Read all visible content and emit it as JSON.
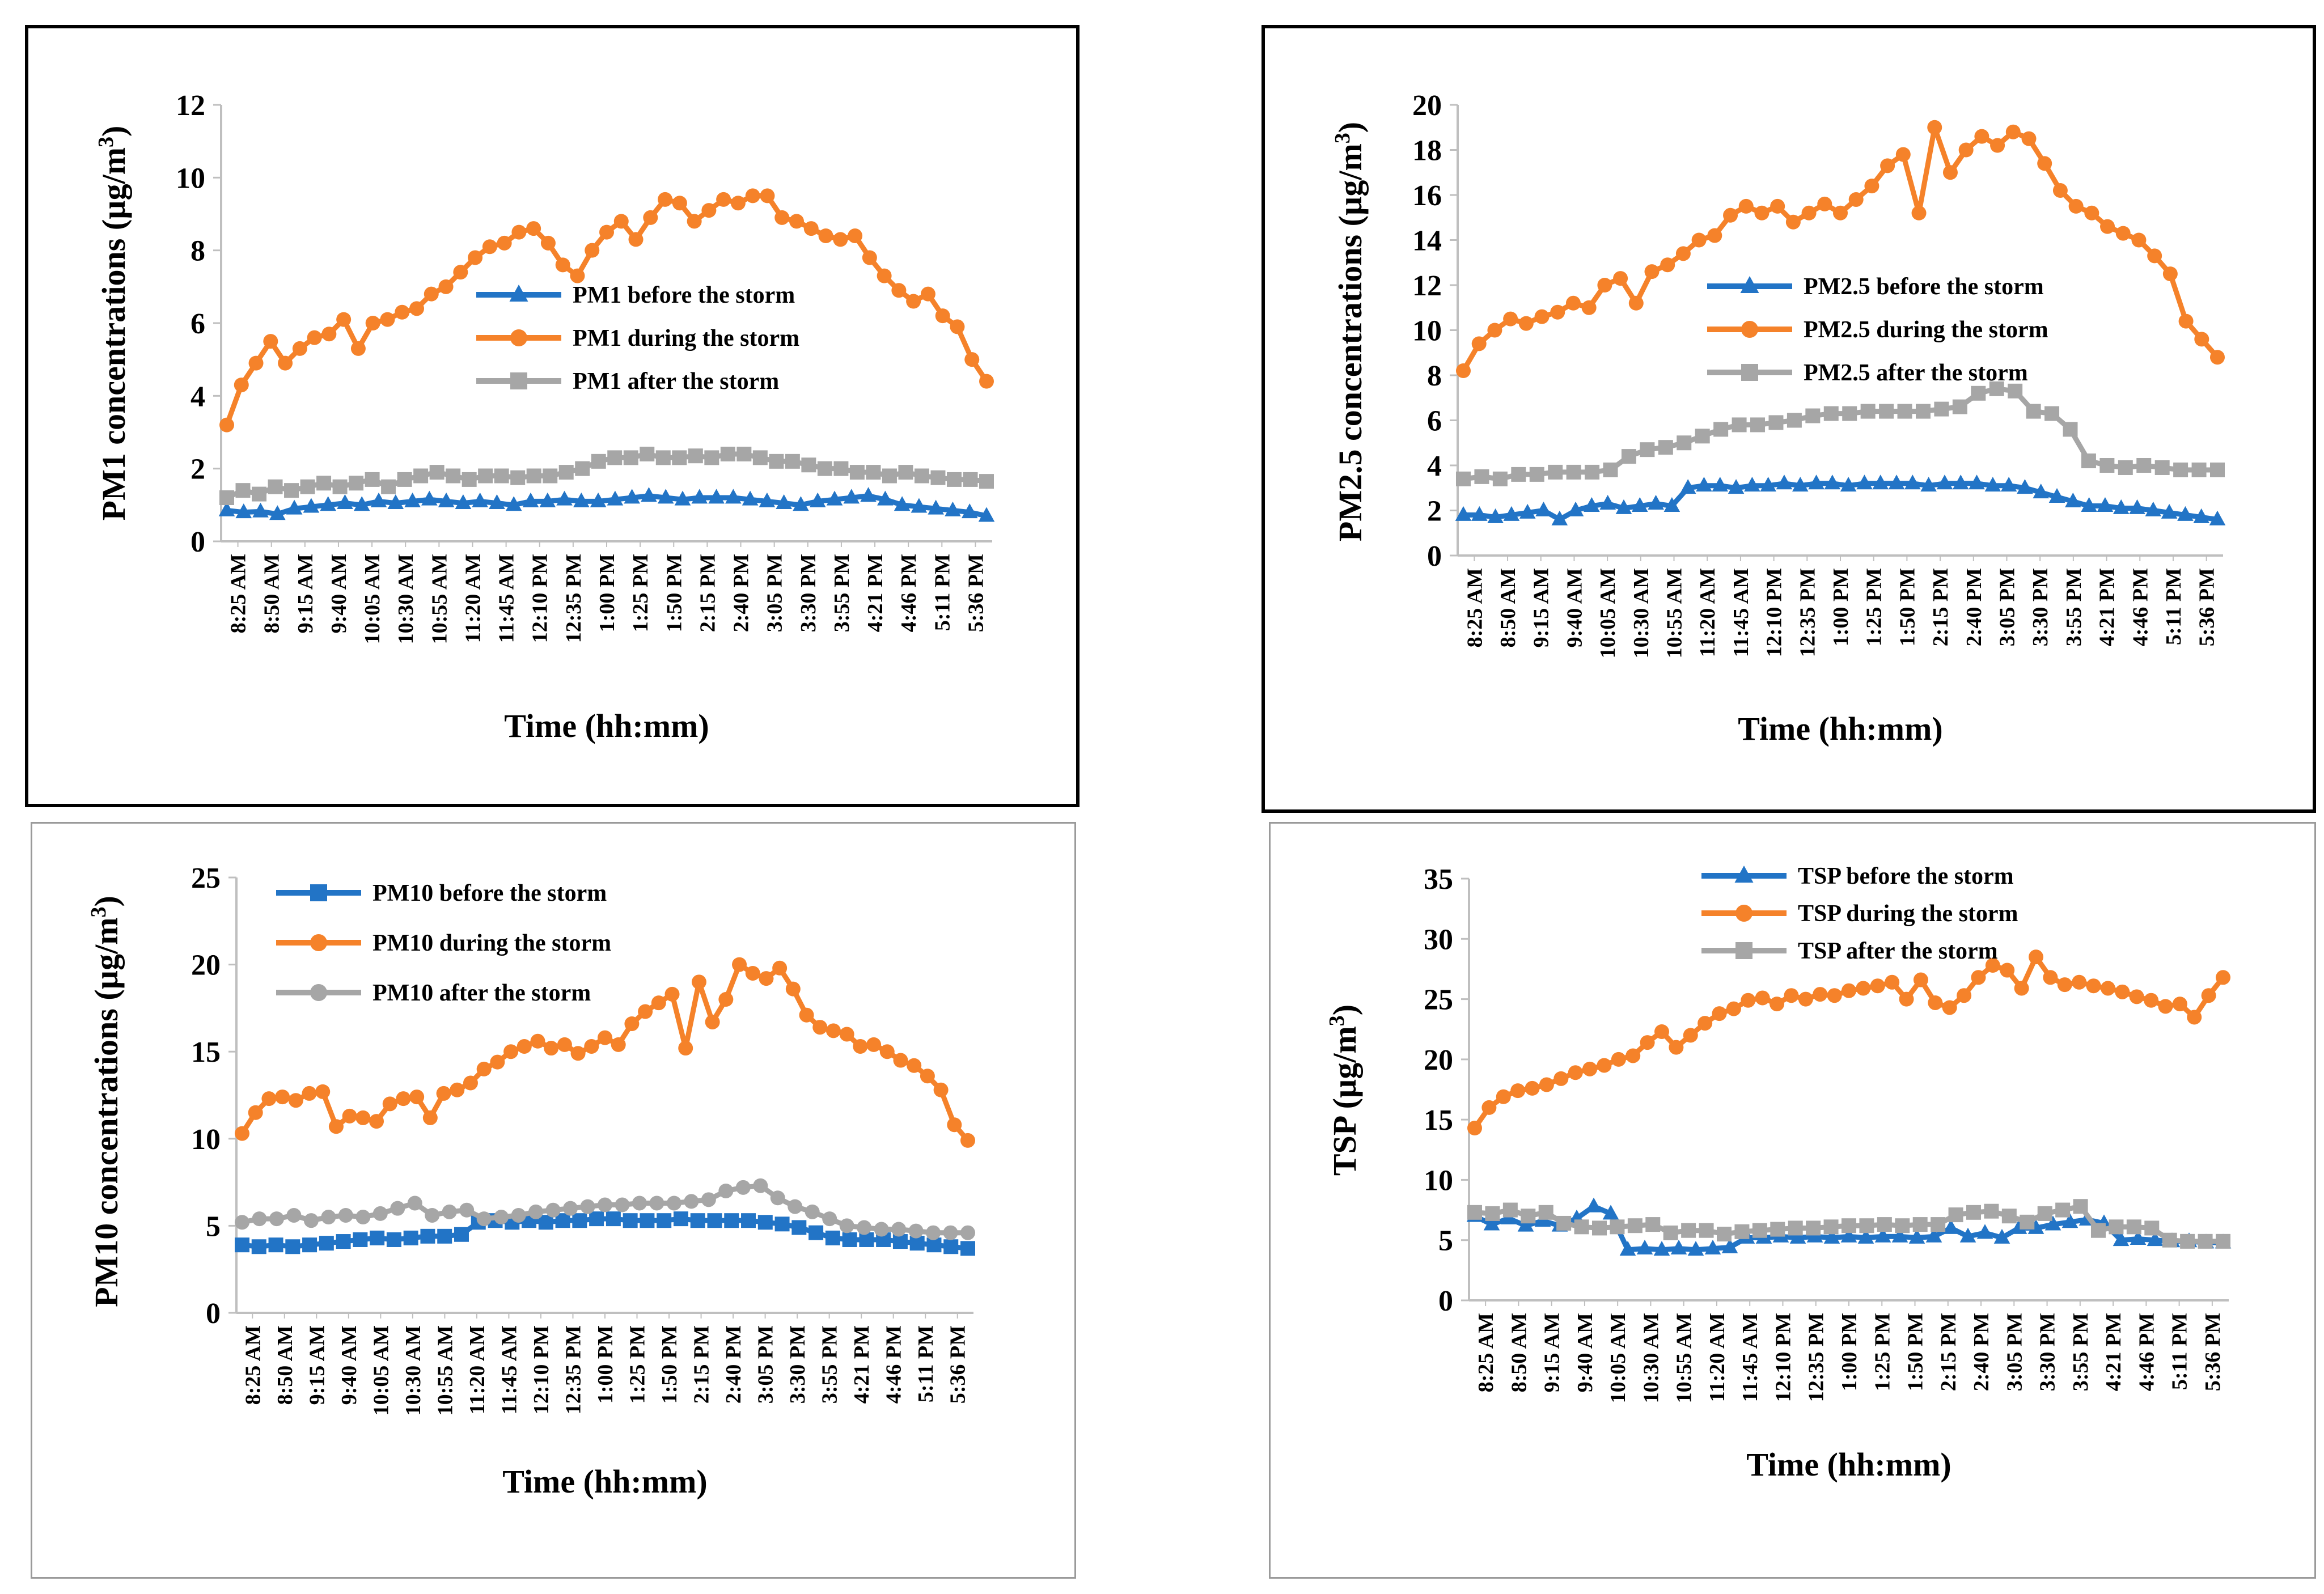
{
  "colors": {
    "before": "#2274C6",
    "during": "#F5822A",
    "after": "#A6A6A6"
  },
  "x_tick_labels": [
    "8:25 AM",
    "8:50 AM",
    "9:15 AM",
    "9:40 AM",
    "10:05 AM",
    "10:30 AM",
    "10:55 AM",
    "11:20 AM",
    "11:45 AM",
    "12:10 PM",
    "12:35 PM",
    "1:00 PM",
    "1:25 PM",
    "1:50 PM",
    "2:15 PM",
    "2:40 PM",
    "3:05 PM",
    "3:30 PM",
    "3:55 PM",
    "4:21 PM",
    "4:46 PM",
    "5:11 PM",
    "5:36 PM"
  ],
  "chart_data": [
    {
      "id": "pm1",
      "type": "line",
      "xlabel": "Time (hh:mm)",
      "ylabel_main": "PM1 concentrations (µg/m",
      "ylabel_sup": "3",
      "ylabel_end": ")",
      "ylim": [
        0,
        12
      ],
      "yticks": [
        0,
        2,
        4,
        6,
        8,
        10,
        12
      ],
      "legend_position": "center",
      "series": [
        {
          "name": "PM1 before the storm",
          "key": "before",
          "marker": "triangle",
          "values": [
            0.85,
            0.8,
            0.82,
            0.75,
            0.9,
            0.95,
            1.0,
            1.05,
            1.0,
            1.1,
            1.05,
            1.1,
            1.15,
            1.1,
            1.05,
            1.1,
            1.05,
            1.0,
            1.1,
            1.1,
            1.15,
            1.1,
            1.1,
            1.15,
            1.2,
            1.25,
            1.2,
            1.15,
            1.2,
            1.2,
            1.2,
            1.15,
            1.1,
            1.05,
            1.0,
            1.1,
            1.15,
            1.2,
            1.25,
            1.15,
            1.0,
            0.95,
            0.9,
            0.85,
            0.8,
            0.7
          ]
        },
        {
          "name": "PM1 during the storm",
          "key": "during",
          "marker": "circle",
          "values": [
            3.2,
            4.3,
            4.9,
            5.5,
            4.9,
            5.3,
            5.6,
            5.7,
            6.1,
            5.3,
            6.0,
            6.1,
            6.3,
            6.4,
            6.8,
            7.0,
            7.4,
            7.8,
            8.1,
            8.2,
            8.5,
            8.6,
            8.2,
            7.6,
            7.3,
            8.0,
            8.5,
            8.8,
            8.3,
            8.9,
            9.4,
            9.3,
            8.8,
            9.1,
            9.4,
            9.3,
            9.5,
            9.5,
            8.9,
            8.8,
            8.6,
            8.4,
            8.3,
            8.4,
            7.8,
            7.3,
            6.9,
            6.6,
            6.8,
            6.2,
            5.9,
            5.0,
            4.4
          ]
        },
        {
          "name": "PM1 after the storm",
          "key": "after",
          "marker": "square",
          "values": [
            1.2,
            1.4,
            1.3,
            1.5,
            1.4,
            1.5,
            1.6,
            1.5,
            1.6,
            1.7,
            1.5,
            1.7,
            1.8,
            1.9,
            1.8,
            1.7,
            1.8,
            1.8,
            1.75,
            1.8,
            1.8,
            1.9,
            2.0,
            2.2,
            2.3,
            2.3,
            2.4,
            2.3,
            2.3,
            2.35,
            2.3,
            2.4,
            2.4,
            2.3,
            2.2,
            2.2,
            2.1,
            2.0,
            2.0,
            1.9,
            1.9,
            1.8,
            1.9,
            1.8,
            1.75,
            1.7,
            1.7,
            1.65
          ]
        }
      ]
    },
    {
      "id": "pm25",
      "type": "line",
      "xlabel": "Time (hh:mm)",
      "ylabel_main": "PM2.5 concentrations (µg/m",
      "ylabel_sup": "3",
      "ylabel_end": ")",
      "ylim": [
        0,
        20
      ],
      "yticks": [
        0,
        2,
        4,
        6,
        8,
        10,
        12,
        14,
        16,
        18,
        20
      ],
      "legend_position": "center",
      "series": [
        {
          "name": "PM2.5 before the storm",
          "key": "before",
          "marker": "triangle",
          "values": [
            1.8,
            1.8,
            1.7,
            1.8,
            1.9,
            2.0,
            1.6,
            2.0,
            2.2,
            2.3,
            2.1,
            2.2,
            2.3,
            2.2,
            3.0,
            3.1,
            3.1,
            3.0,
            3.1,
            3.1,
            3.2,
            3.1,
            3.2,
            3.2,
            3.1,
            3.2,
            3.2,
            3.2,
            3.2,
            3.1,
            3.2,
            3.2,
            3.2,
            3.1,
            3.1,
            3.0,
            2.8,
            2.6,
            2.4,
            2.2,
            2.2,
            2.1,
            2.1,
            2.0,
            1.9,
            1.8,
            1.7,
            1.6
          ]
        },
        {
          "name": "PM2.5 during the storm",
          "key": "during",
          "marker": "circle",
          "values": [
            8.2,
            9.4,
            10.0,
            10.5,
            10.3,
            10.6,
            10.8,
            11.2,
            11.0,
            12.0,
            12.3,
            11.2,
            12.6,
            12.9,
            13.4,
            14.0,
            14.2,
            15.1,
            15.5,
            15.2,
            15.5,
            14.8,
            15.2,
            15.6,
            15.2,
            15.8,
            16.4,
            17.3,
            17.8,
            15.2,
            19.0,
            17.0,
            18.0,
            18.6,
            18.2,
            18.8,
            18.5,
            17.4,
            16.2,
            15.5,
            15.2,
            14.6,
            14.3,
            14.0,
            13.3,
            12.5,
            10.4,
            9.6,
            8.8
          ]
        },
        {
          "name": "PM2.5 after the storm",
          "key": "after",
          "marker": "square",
          "values": [
            3.4,
            3.5,
            3.4,
            3.6,
            3.6,
            3.7,
            3.7,
            3.7,
            3.8,
            4.4,
            4.7,
            4.8,
            5.0,
            5.3,
            5.6,
            5.8,
            5.8,
            5.9,
            6.0,
            6.2,
            6.3,
            6.3,
            6.4,
            6.4,
            6.4,
            6.4,
            6.5,
            6.6,
            7.2,
            7.4,
            7.3,
            6.4,
            6.3,
            5.6,
            4.2,
            4.0,
            3.9,
            4.0,
            3.9,
            3.8,
            3.8,
            3.8
          ]
        }
      ]
    },
    {
      "id": "pm10",
      "type": "line",
      "xlabel": "Time (hh:mm)",
      "ylabel_main": "PM10 concentrations (µg/m",
      "ylabel_sup": "3",
      "ylabel_end": ")",
      "ylim": [
        0,
        25
      ],
      "yticks": [
        0,
        5,
        10,
        15,
        20,
        25
      ],
      "legend_position": "top-left",
      "series": [
        {
          "name": "PM10 before the storm",
          "key": "before",
          "marker": "square",
          "values": [
            3.9,
            3.8,
            3.9,
            3.8,
            3.9,
            4.0,
            4.1,
            4.2,
            4.3,
            4.2,
            4.3,
            4.4,
            4.4,
            4.5,
            5.2,
            5.3,
            5.2,
            5.3,
            5.2,
            5.3,
            5.3,
            5.4,
            5.4,
            5.3,
            5.3,
            5.3,
            5.4,
            5.3,
            5.3,
            5.3,
            5.3,
            5.2,
            5.1,
            4.9,
            4.6,
            4.3,
            4.2,
            4.2,
            4.2,
            4.1,
            4.0,
            3.9,
            3.8,
            3.7
          ]
        },
        {
          "name": "PM10 during the storm",
          "key": "during",
          "marker": "circle",
          "values": [
            10.3,
            11.5,
            12.3,
            12.4,
            12.2,
            12.6,
            12.7,
            10.7,
            11.3,
            11.2,
            11.0,
            12.0,
            12.3,
            12.4,
            11.2,
            12.6,
            12.8,
            13.2,
            14.0,
            14.4,
            15.0,
            15.3,
            15.6,
            15.2,
            15.4,
            14.9,
            15.3,
            15.8,
            15.4,
            16.6,
            17.3,
            17.8,
            18.3,
            15.2,
            19.0,
            16.7,
            18.0,
            20.0,
            19.5,
            19.2,
            19.8,
            18.6,
            17.1,
            16.4,
            16.2,
            16.0,
            15.3,
            15.4,
            15.0,
            14.5,
            14.2,
            13.6,
            12.8,
            10.8,
            9.9
          ]
        },
        {
          "name": "PM10 after the storm",
          "key": "after",
          "marker": "circle",
          "values": [
            5.2,
            5.4,
            5.4,
            5.6,
            5.3,
            5.5,
            5.6,
            5.5,
            5.7,
            6.0,
            6.3,
            5.6,
            5.8,
            5.9,
            5.4,
            5.5,
            5.6,
            5.8,
            5.9,
            6.0,
            6.1,
            6.2,
            6.2,
            6.3,
            6.3,
            6.3,
            6.4,
            6.5,
            7.0,
            7.2,
            7.3,
            6.6,
            6.1,
            5.8,
            5.4,
            5.0,
            4.9,
            4.8,
            4.8,
            4.7,
            4.6,
            4.6,
            4.6
          ]
        }
      ]
    },
    {
      "id": "tsp",
      "type": "line",
      "xlabel": "Time (hh:mm)",
      "ylabel_main": "TSP (µg/m",
      "ylabel_sup": "3",
      "ylabel_end": ")",
      "ylim": [
        0,
        35
      ],
      "yticks": [
        0,
        5,
        10,
        15,
        20,
        25,
        30,
        35
      ],
      "legend_position": "top-left",
      "series": [
        {
          "name": "TSP before the storm",
          "key": "before",
          "marker": "triangle",
          "values": [
            7.0,
            6.3,
            6.8,
            6.2,
            6.6,
            6.2,
            6.8,
            7.8,
            7.2,
            4.2,
            4.3,
            4.2,
            4.3,
            4.2,
            4.3,
            4.4,
            5.2,
            5.2,
            5.3,
            5.2,
            5.3,
            5.2,
            5.3,
            5.2,
            5.3,
            5.3,
            5.2,
            5.3,
            6.0,
            5.3,
            5.6,
            5.2,
            6.0,
            6.0,
            6.3,
            6.5,
            6.7,
            6.4,
            5.0,
            5.1,
            5.0,
            4.9,
            4.9,
            4.8,
            4.8
          ]
        },
        {
          "name": "TSP during the storm",
          "key": "during",
          "marker": "circle",
          "values": [
            14.3,
            16.0,
            16.9,
            17.4,
            17.6,
            17.9,
            18.4,
            18.9,
            19.2,
            19.5,
            20.0,
            20.3,
            21.4,
            22.3,
            21.0,
            22.0,
            23.0,
            23.8,
            24.2,
            24.9,
            25.1,
            24.6,
            25.3,
            25.0,
            25.4,
            25.3,
            25.7,
            25.9,
            26.1,
            26.4,
            25.0,
            26.6,
            24.7,
            24.3,
            25.3,
            26.8,
            27.8,
            27.4,
            25.9,
            28.5,
            26.8,
            26.2,
            26.4,
            26.1,
            25.9,
            25.6,
            25.2,
            24.9,
            24.4,
            24.6,
            23.5,
            25.3,
            26.8
          ]
        },
        {
          "name": "TSP after the storm",
          "key": "after",
          "marker": "square",
          "values": [
            7.3,
            7.2,
            7.5,
            7.0,
            7.3,
            6.4,
            6.1,
            6.0,
            6.1,
            6.2,
            6.3,
            5.6,
            5.8,
            5.8,
            5.5,
            5.7,
            5.8,
            5.9,
            6.0,
            6.0,
            6.1,
            6.2,
            6.2,
            6.3,
            6.2,
            6.3,
            6.3,
            7.1,
            7.3,
            7.4,
            7.0,
            6.5,
            7.2,
            7.5,
            7.8,
            5.8,
            6.1,
            6.1,
            6.0,
            5.0,
            4.9,
            4.9,
            4.9
          ]
        }
      ]
    }
  ]
}
